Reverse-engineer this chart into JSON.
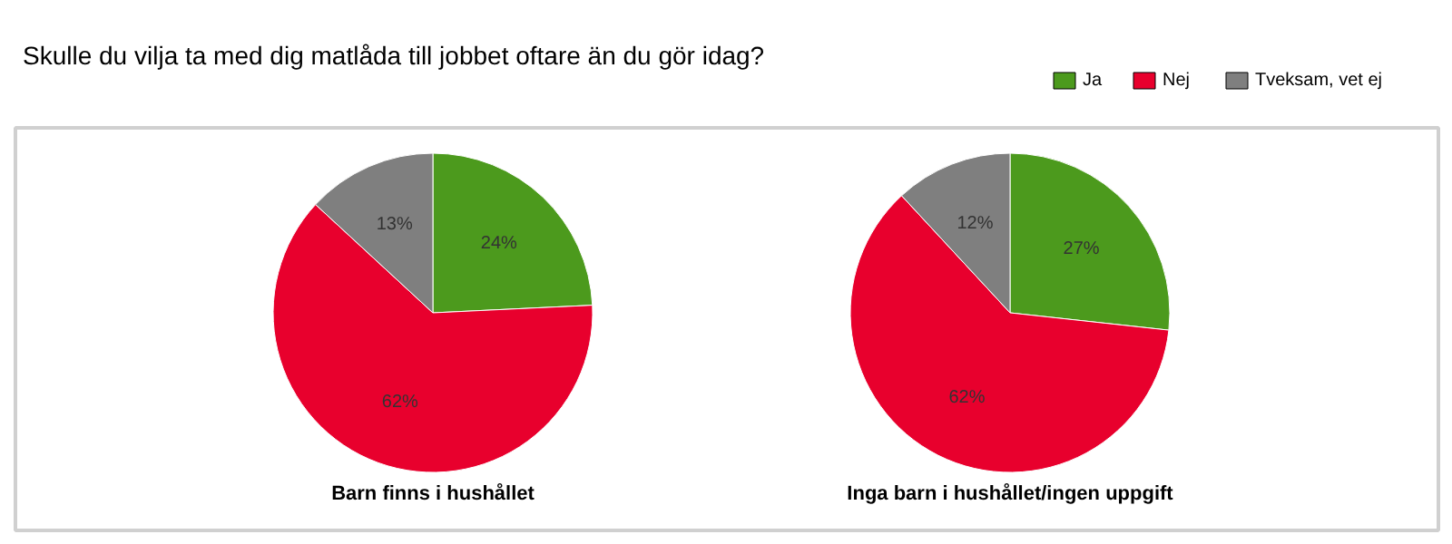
{
  "chart_data": [
    {
      "type": "pie",
      "title": "Barn finns i hushållet",
      "annotations": [
        "Skulle du vilja ta med dig matlåda till jobbet oftare än du gör idag?"
      ],
      "categories": [
        "Ja",
        "Nej",
        "Tveksam, vet ej"
      ],
      "values": [
        24,
        62,
        13
      ],
      "value_labels": [
        "24%",
        "62%",
        "13%"
      ],
      "colors": [
        "#4c9a1d",
        "#e8002d",
        "#7f7f7f"
      ],
      "legend": "top right"
    },
    {
      "type": "pie",
      "title": "Inga barn i hushållet/ingen uppgift",
      "categories": [
        null,
        null,
        null
      ],
      "values": [
        27,
        62,
        12
      ],
      "value_labels": [
        "27%",
        "62%",
        "12%"
      ],
      "colors": [
        "#4c9a1d",
        "#e8002d",
        "#7f7f7f"
      ]
    }
  ]
}
